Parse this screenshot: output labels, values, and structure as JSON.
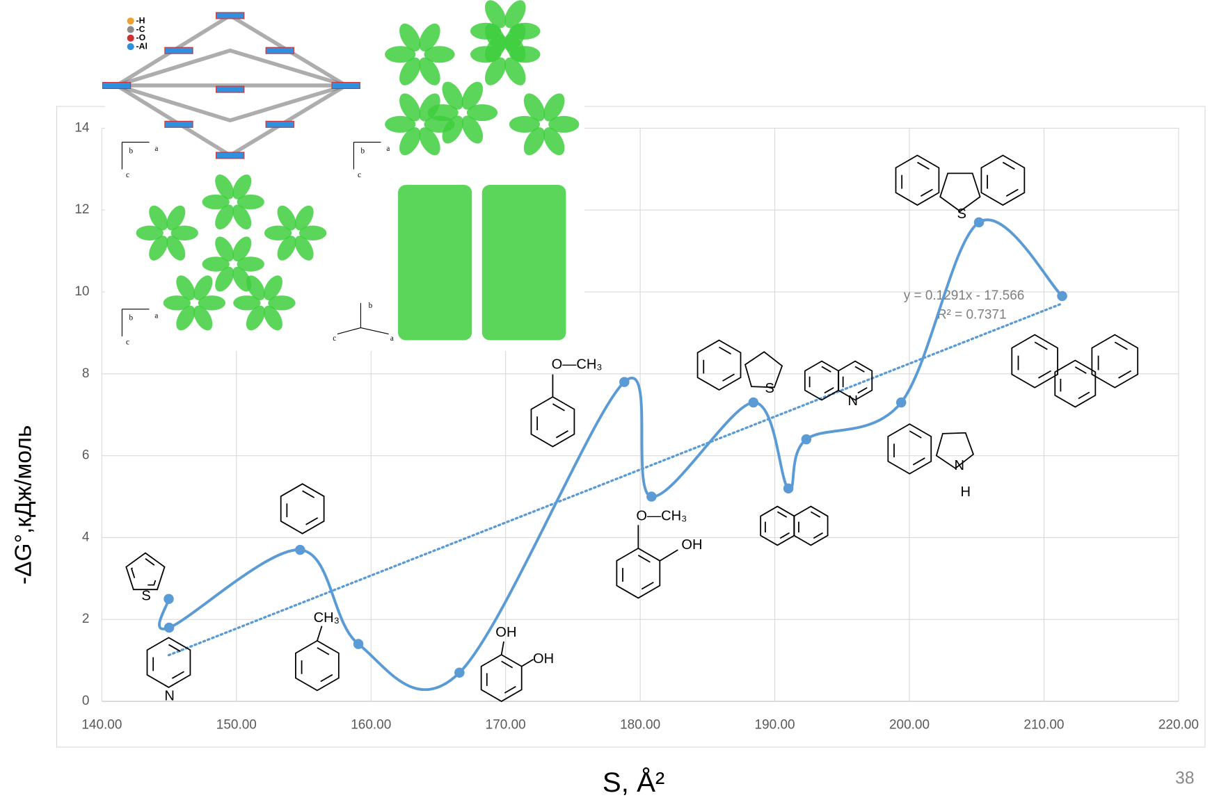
{
  "chart_data": {
    "type": "line",
    "smooth": true,
    "x_label": "S, Å²",
    "y_label": "-ΔG°,кДж/моль",
    "x": [
      144.97,
      145.0,
      154.73,
      159.06,
      166.57,
      178.82,
      180.84,
      188.41,
      191.01,
      192.34,
      199.39,
      205.17,
      211.35
    ],
    "series": [
      {
        "color": "#5b9bd5",
        "values": [
          2.5,
          1.8,
          3.7,
          1.4,
          0.7,
          7.8,
          5.0,
          7.3,
          5.2,
          6.4,
          7.3,
          11.7,
          9.9
        ]
      }
    ],
    "xlim": [
      140,
      220
    ],
    "xticks": [
      {
        "value": 140,
        "label": "140.00"
      },
      {
        "value": 150,
        "label": "150.00"
      },
      {
        "value": 160,
        "label": "160.00"
      },
      {
        "value": 170,
        "label": "170.00"
      },
      {
        "value": 180,
        "label": "180.00"
      },
      {
        "value": 190,
        "label": "190.00"
      },
      {
        "value": 200,
        "label": "200.00"
      },
      {
        "value": 210,
        "label": "210.00"
      },
      {
        "value": 220,
        "label": "220.00"
      }
    ],
    "ylim": [
      0,
      14
    ],
    "yticks": [
      0,
      2,
      4,
      6,
      8,
      10,
      12,
      14
    ],
    "grid": true,
    "trendline": {
      "style": "dotted",
      "equation": "y = 0.1291x - 17.566",
      "r_squared": "R² = 0.7371"
    }
  },
  "molecule_labels": [
    "S",
    "N",
    "CH₃",
    "OH",
    "OH",
    "O—CH₃",
    "O—CH₃",
    "OH",
    "S",
    "N",
    "N",
    "H",
    "S"
  ],
  "inset": {
    "legend": [
      "-H",
      "-C",
      "-O",
      "-Al"
    ],
    "legend_colors": [
      "#f0a030",
      "#8c8c8c",
      "#d03030",
      "#3090e0"
    ],
    "axes": [
      [
        "b",
        "a",
        "c"
      ],
      [
        "b",
        "a",
        "c"
      ],
      [
        "b",
        "a",
        "c"
      ],
      [
        "b",
        "c",
        "a"
      ]
    ]
  },
  "page_number": "38"
}
